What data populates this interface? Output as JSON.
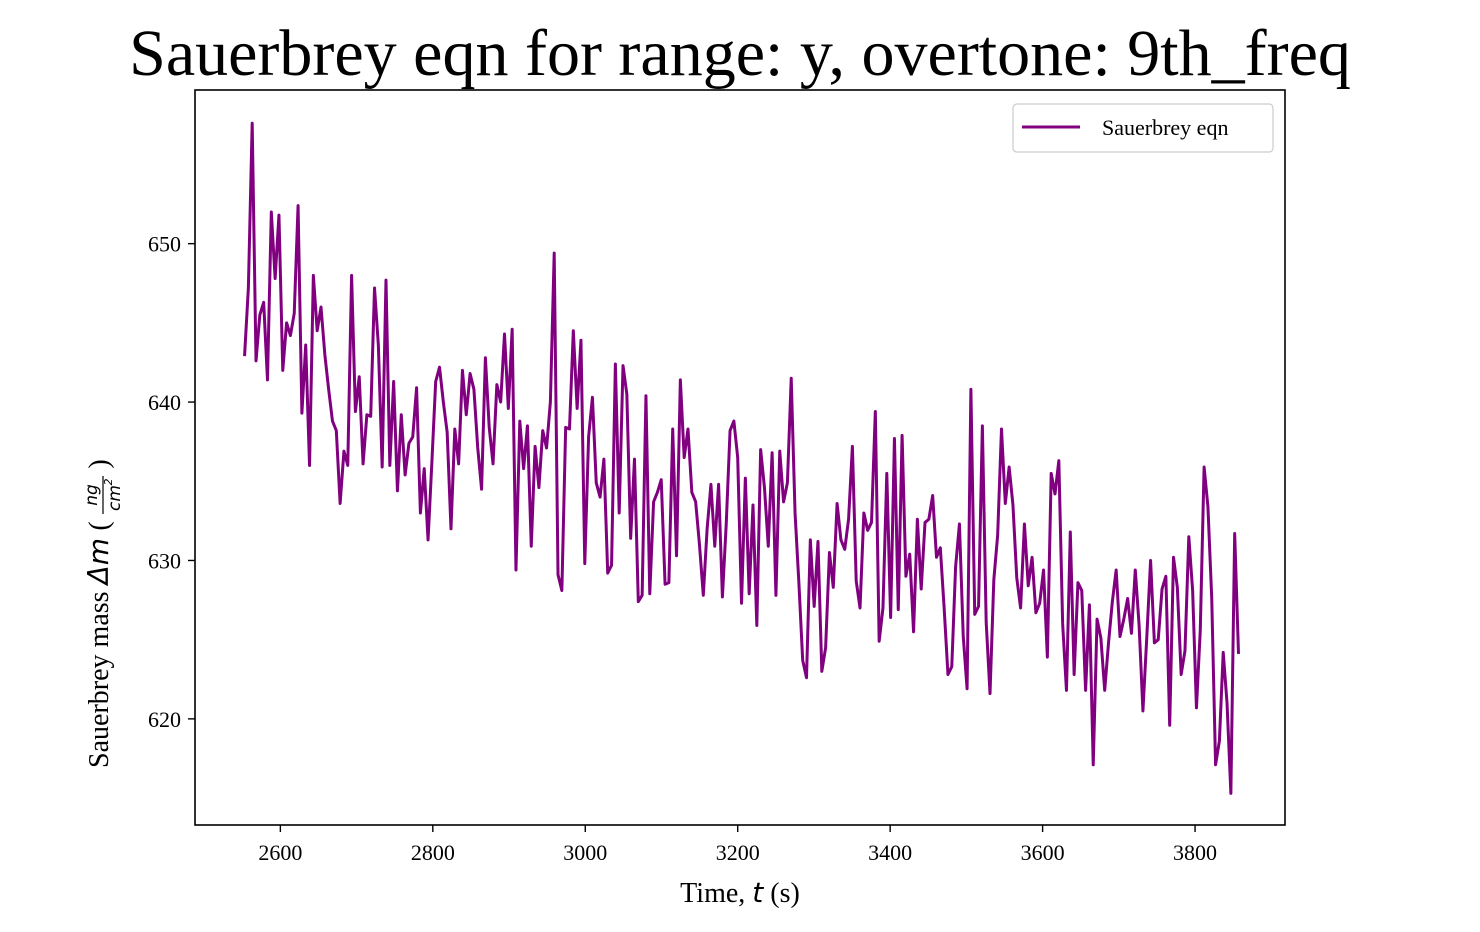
{
  "chart_data": {
    "type": "line",
    "title": "Sauerbrey eqn for range: y, overtone: 9th_freq",
    "xlabel": {
      "prefix": "Time, ",
      "var": "t",
      "suffix": " (s)"
    },
    "ylabel": {
      "prefix": "Sauerbrey mass ",
      "var": "Δm",
      "unit_open": "(",
      "frac_num": "ng",
      "frac_den": "cm",
      "frac_den_sup": "2",
      "unit_close": ")"
    },
    "xlim": [
      2488,
      3918
    ],
    "ylim": [
      613.3,
      659.7
    ],
    "xticks": [
      2600,
      2800,
      3000,
      3200,
      3400,
      3600,
      3800
    ],
    "yticks": [
      620,
      630,
      640,
      650
    ],
    "grid": false,
    "legend_position": "top-right",
    "color": "#800080",
    "series": [
      {
        "name": "Sauerbrey eqn",
        "x_start": 2553,
        "x_end": 3857,
        "values": [
          642.9,
          647.2,
          657.6,
          642.6,
          645.5,
          646.3,
          641.4,
          652.0,
          647.8,
          651.8,
          642.0,
          645.0,
          644.2,
          645.6,
          652.4,
          639.3,
          643.6,
          636.0,
          648.0,
          644.5,
          646.0,
          643.0,
          640.8,
          638.8,
          638.2,
          633.6,
          636.9,
          636.0,
          648.0,
          639.4,
          641.6,
          636.1,
          639.2,
          639.1,
          647.2,
          643.6,
          635.9,
          647.7,
          636.0,
          641.3,
          634.4,
          639.2,
          635.4,
          637.4,
          637.8,
          640.9,
          633.0,
          635.8,
          631.3,
          636.2,
          641.3,
          642.2,
          640.0,
          638.1,
          632.0,
          638.3,
          636.1,
          642.0,
          639.2,
          641.8,
          640.8,
          637.1,
          634.5,
          642.8,
          638.4,
          636.1,
          641.1,
          640.0,
          644.3,
          639.6,
          644.6,
          629.4,
          638.8,
          635.8,
          638.5,
          630.9,
          637.2,
          634.6,
          638.2,
          637.1,
          640.0,
          649.4,
          629.1,
          628.1,
          638.4,
          638.3,
          644.5,
          639.6,
          643.9,
          629.8,
          637.8,
          640.3,
          634.9,
          634.0,
          636.4,
          629.2,
          629.7,
          642.4,
          633.0,
          642.3,
          640.5,
          631.4,
          636.4,
          627.4,
          627.8,
          640.4,
          627.9,
          633.7,
          634.3,
          635.1,
          628.5,
          628.6,
          638.3,
          630.3,
          641.4,
          636.5,
          638.3,
          634.3,
          633.7,
          631.0,
          627.8,
          632.0,
          634.8,
          630.9,
          634.8,
          627.7,
          632.3,
          638.2,
          638.8,
          636.5,
          627.3,
          635.2,
          627.9,
          633.5,
          625.9,
          637.0,
          634.6,
          630.9,
          636.8,
          627.8,
          636.9,
          633.7,
          634.9,
          641.5,
          633.0,
          628.6,
          623.7,
          622.6,
          631.3,
          627.1,
          631.2,
          623.0,
          624.5,
          630.5,
          628.3,
          633.6,
          631.3,
          630.7,
          632.6,
          637.2,
          628.7,
          627.0,
          633.0,
          631.9,
          632.4,
          639.4,
          624.9,
          627.0,
          635.5,
          626.4,
          637.7,
          626.9,
          637.9,
          629.0,
          630.4,
          625.5,
          632.6,
          628.2,
          632.4,
          632.6,
          634.1,
          630.2,
          630.8,
          627.0,
          622.8,
          623.3,
          629.6,
          632.3,
          625.2,
          621.9,
          640.8,
          626.6,
          627.1,
          638.5,
          626.1,
          621.6,
          628.8,
          631.6,
          638.3,
          633.6,
          635.9,
          633.5,
          628.9,
          627.0,
          632.3,
          628.4,
          630.2,
          626.7,
          627.3,
          629.4,
          623.9,
          635.5,
          634.2,
          636.3,
          626.0,
          621.8,
          631.8,
          622.8,
          628.6,
          628.1,
          621.8,
          627.2,
          617.1,
          626.3,
          625.1,
          621.8,
          624.8,
          627.4,
          629.4,
          625.2,
          626.3,
          627.6,
          625.4,
          629.4,
          625.9,
          620.5,
          625.1,
          630.0,
          624.8,
          625.0,
          628.2,
          629.0,
          619.6,
          630.2,
          628.3,
          622.8,
          624.3,
          631.5,
          628.1,
          620.7,
          625.6,
          635.9,
          633.4,
          627.6,
          617.1,
          618.6,
          624.2,
          621.0,
          615.3,
          631.7,
          624.1
        ]
      }
    ]
  }
}
